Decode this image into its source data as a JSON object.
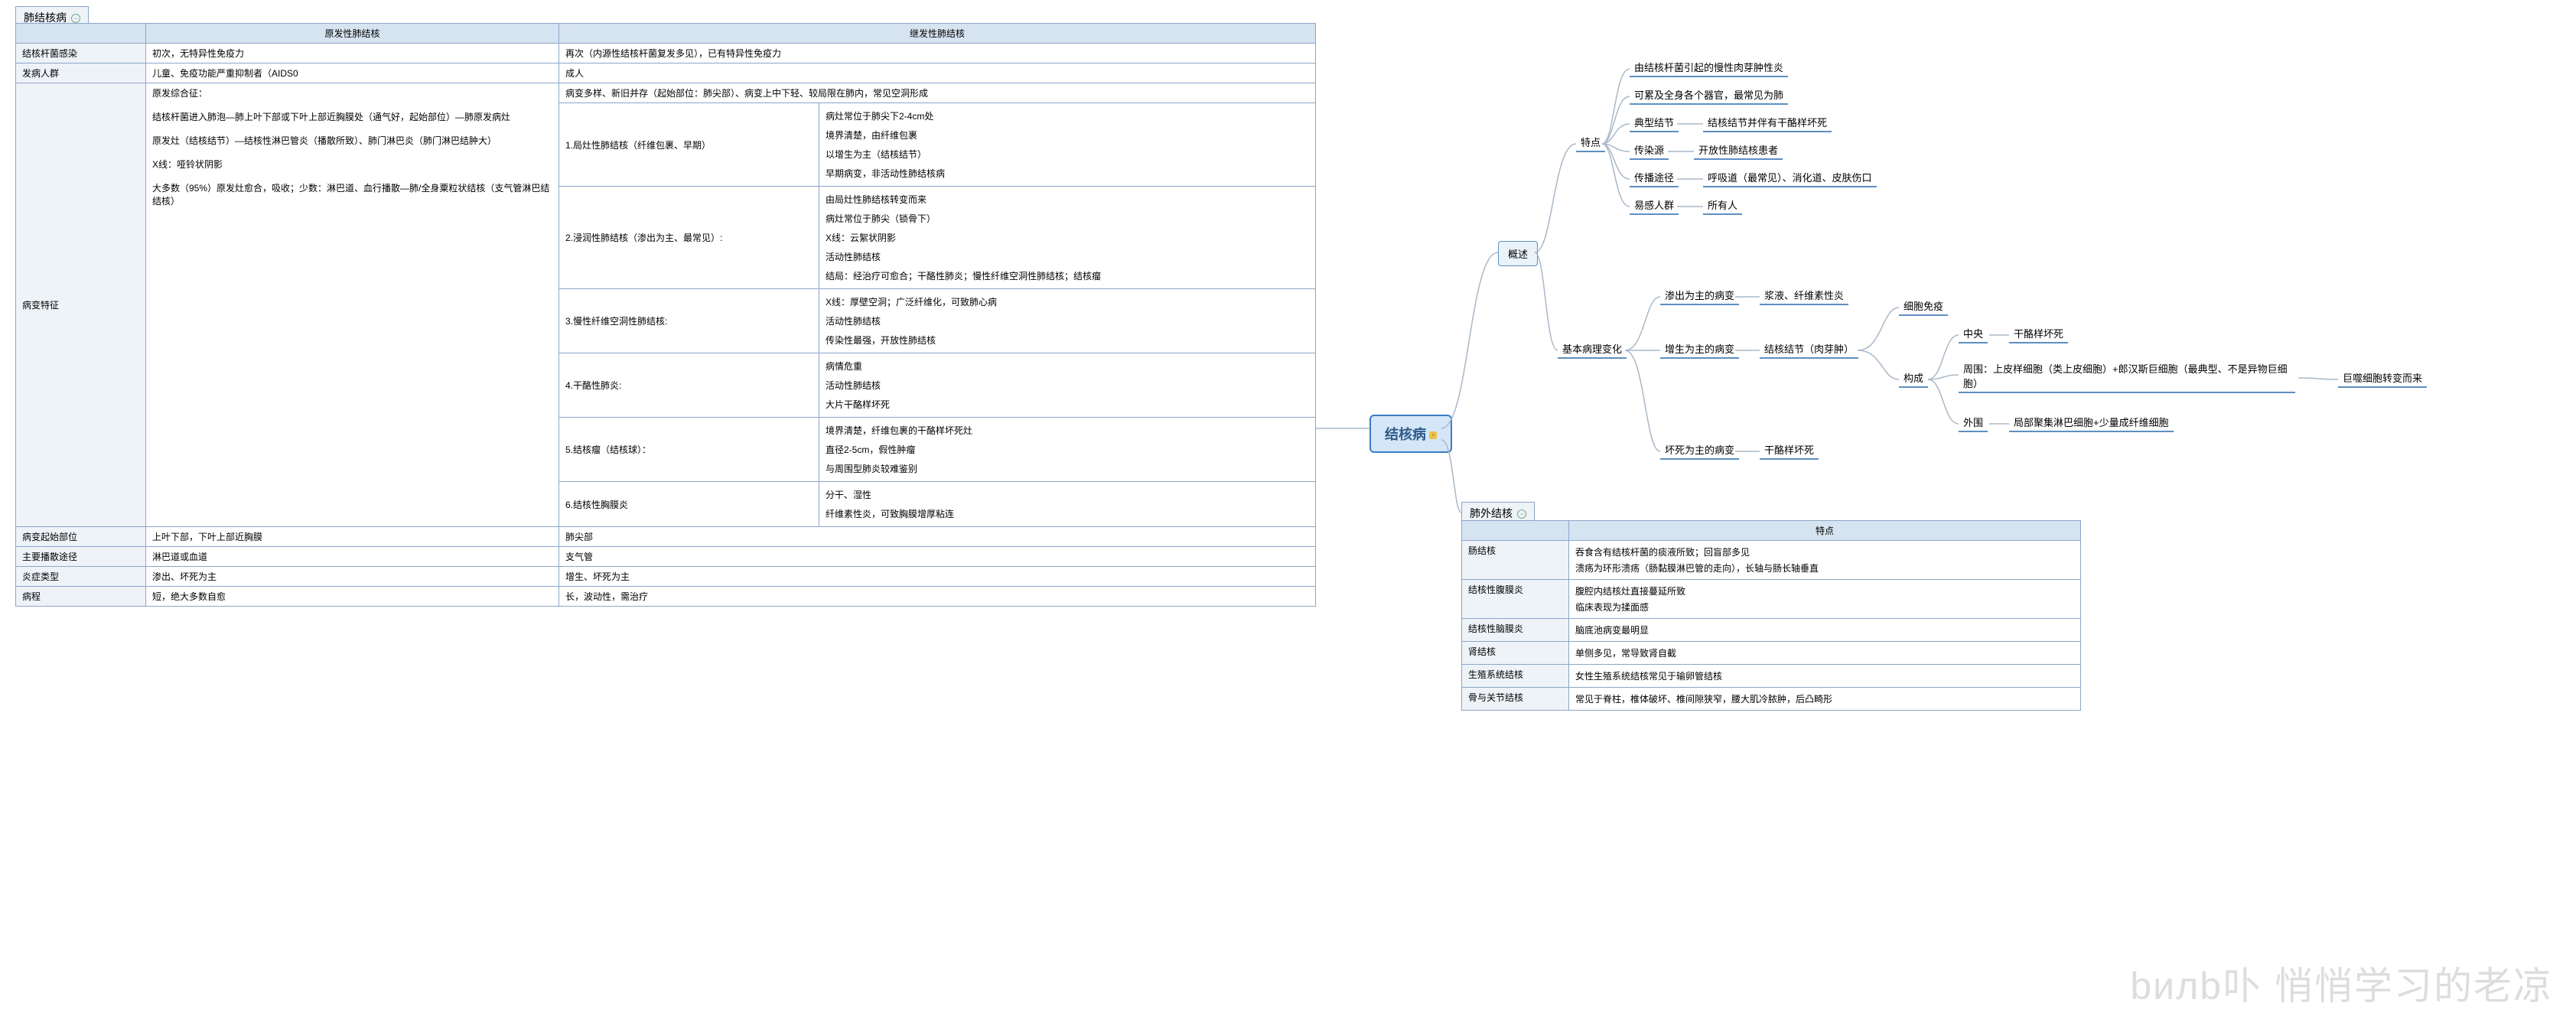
{
  "colors": {
    "border": "#8ca6c9",
    "header_bg": "#d6e3f0",
    "row_bg": "#eef3f8",
    "node_border": "#5d8fc0",
    "root_bg": "#d4e6f7",
    "line": "#aab8c8"
  },
  "left": {
    "title": "肺结核病",
    "cols": [
      "原发性肺结核",
      "继发性肺结核"
    ],
    "rows": {
      "r1": {
        "label": "结核杆菌感染",
        "a": "初次，无特异性免疫力",
        "b": "再次（内源性结核杆菌复发多见），已有特异性免疫力"
      },
      "r2": {
        "label": "发病人群",
        "a": "儿童、免疫功能严重抑制者（AIDS0",
        "b": "成人"
      },
      "r3": {
        "label": "病变特征",
        "a_lines": [
          "原发综合征：",
          "结核杆菌进入肺泡—肺上叶下部或下叶上部近胸膜处（通气好，起始部位）—肺原发病灶",
          "原发灶（结核结节）—结核性淋巴管炎（播散所致）、肺门淋巴炎（肺门淋巴结肿大）",
          "X线：哑铃状阴影",
          "大多数（95%）原发灶愈合，吸收；少数：淋巴道、血行播散—肺/全身粟粒状结核（支气管淋巴结结核）"
        ],
        "b_top": "病变多样、新旧并存（起始部位：肺尖部）、病变上中下轻、较局限在肺内，常见空洞形成",
        "b_items": [
          {
            "name": "1.局灶性肺结核（纤维包裹、早期）",
            "details": [
              "病灶常位于肺尖下2-4cm处",
              "境界清楚，由纤维包裹",
              "以增生为主（结核结节）",
              "早期病变，非活动性肺结核病"
            ]
          },
          {
            "name": "2.浸润性肺结核（渗出为主、最常见）:",
            "details": [
              "由局灶性肺结核转变而来",
              "病灶常位于肺尖（锁骨下）",
              "X线：云絮状阴影",
              "活动性肺结核",
              "结局：经治疗可愈合；干酪性肺炎；慢性纤维空洞性肺结核；结核瘤"
            ]
          },
          {
            "name": "3.慢性纤维空洞性肺结核:",
            "details": [
              "X线：厚壁空洞；广泛纤维化，可致肺心病",
              "活动性肺结核",
              "传染性最强，开放性肺结核"
            ]
          },
          {
            "name": "4.干酪性肺炎:",
            "details": [
              "病情危重",
              "活动性肺结核",
              "大片干酪样坏死"
            ]
          },
          {
            "name": "5.结核瘤（结核球）：",
            "details": [
              "境界清楚，纤维包裹的干酪样坏死灶",
              "直径2-5cm，假性肿瘤",
              "与周围型肺炎较难鉴别"
            ]
          },
          {
            "name": "6.结核性胸膜炎",
            "details": [
              "分干、湿性",
              "纤维素性炎，可致胸膜增厚粘连"
            ]
          }
        ]
      },
      "r4": {
        "label": "病变起始部位",
        "a": "上叶下部，下叶上部近胸膜",
        "b": "肺尖部"
      },
      "r5": {
        "label": "主要播散途径",
        "a": "淋巴道或血道",
        "b": "支气管"
      },
      "r6": {
        "label": "炎症类型",
        "a": "渗出、坏死为主",
        "b": "增生、坏死为主"
      },
      "r7": {
        "label": "病程",
        "a": "短，绝大多数自愈",
        "b": "长，波动性，需治疗"
      }
    }
  },
  "root": "结核病",
  "overview": {
    "title": "概述",
    "features_label": "特点",
    "features": [
      "由结核杆菌引起的慢性肉芽肿性炎",
      "可累及全身各个器官，最常见为肺"
    ],
    "feat_rows": [
      {
        "k": "典型结节",
        "v": "结核结节并伴有干酪样坏死"
      },
      {
        "k": "传染源",
        "v": "开放性肺结核患者"
      },
      {
        "k": "传播途径",
        "v": "呼吸道（最常见）、消化道、皮肤伤口"
      },
      {
        "k": "易感人群",
        "v": "所有人"
      }
    ],
    "path_label": "基本病理变化",
    "path_rows": [
      {
        "k": "渗出为主的病变",
        "v": "浆液、纤维素性炎"
      },
      {
        "k": "增生为主的病变",
        "v": "结核结节（肉芽肿）"
      },
      {
        "k": "坏死为主的病变",
        "v": "干酪样坏死"
      }
    ],
    "compose_label": "构成",
    "immune": "细胞免疫",
    "compose": [
      {
        "k": "中央",
        "v": "干酪样坏死"
      },
      {
        "k": "周围",
        "v": "上皮样细胞（类上皮细胞）+郎汉斯巨细胞（最典型、不是异物巨细胞）"
      },
      {
        "k": "外围",
        "v": "局部聚集淋巴细胞+少量成纤维细胞"
      }
    ],
    "origin": "巨噬细胞转变而来"
  },
  "ext": {
    "title": "肺外结核",
    "col": "特点",
    "rows": [
      {
        "k": "肠结核",
        "v": "吞食含有结核杆菌的痰液所致；回盲部多见\n溃疡为环形溃疡（肠黏膜淋巴管的走向），长轴与肠长轴垂直"
      },
      {
        "k": "结核性腹膜炎",
        "v": "腹腔内结核灶直接蔓延所致\n临床表现为揉面感"
      },
      {
        "k": "结核性脑膜炎",
        "v": "脑底池病变最明显"
      },
      {
        "k": "肾结核",
        "v": "单侧多见，常导致肾自截"
      },
      {
        "k": "生殖系统结核",
        "v": "女性生殖系统结核常见于输卵管结核"
      },
      {
        "k": "骨与关节结核",
        "v": "常见于脊柱，椎体破坏、椎间隙狭窄，腰大肌冷脓肿，后凸畸形"
      }
    ]
  },
  "watermark": "悄悄学习的老凉"
}
